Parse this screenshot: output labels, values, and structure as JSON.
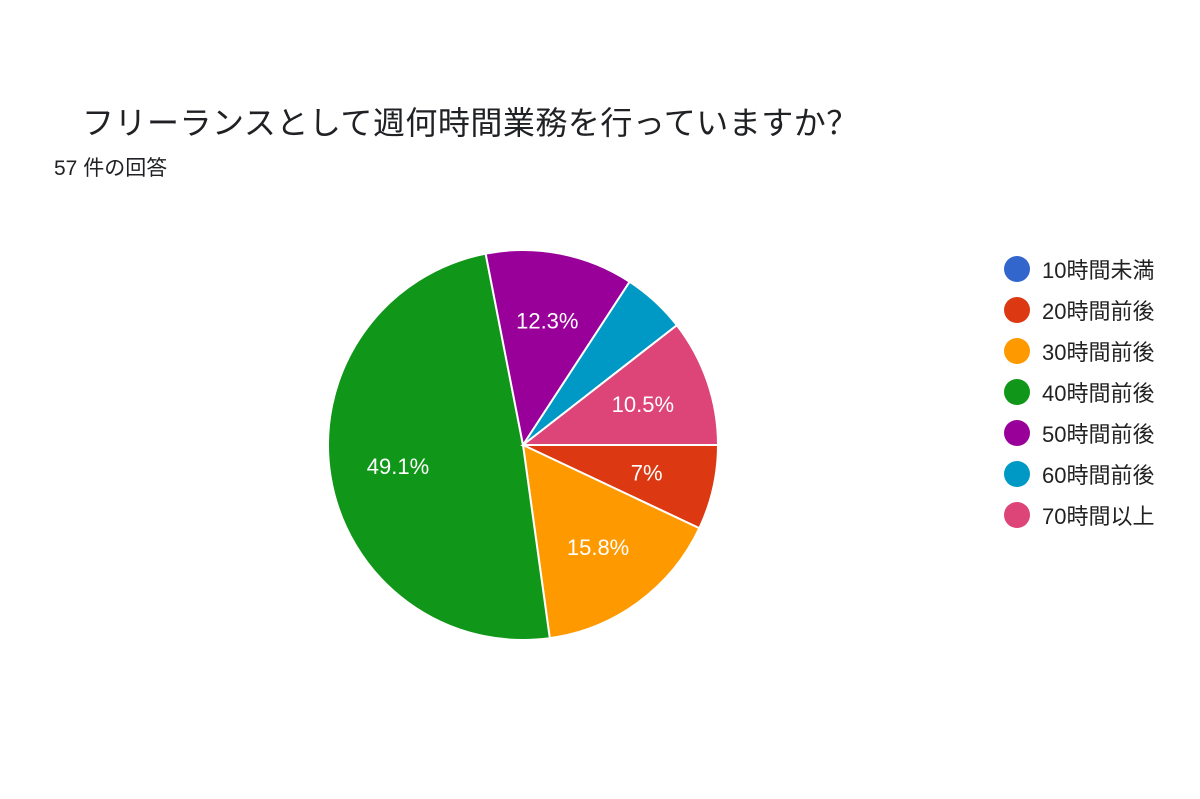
{
  "header": {
    "title": "フリーランスとして週何時間業務を行っていますか？",
    "subtitle": "57 件の回答"
  },
  "chart_data": {
    "type": "pie",
    "total_responses": 57,
    "legend_position": "right",
    "slices": [
      {
        "label": "10時間未満",
        "value": 0,
        "percent_label": "",
        "color": "#3366cc"
      },
      {
        "label": "20時間前後",
        "value": 4,
        "percent_label": "7%",
        "color": "#dc3912"
      },
      {
        "label": "30時間前後",
        "value": 9,
        "percent_label": "15.8%",
        "color": "#ff9900"
      },
      {
        "label": "40時間前後",
        "value": 28,
        "percent_label": "49.1%",
        "color": "#109618"
      },
      {
        "label": "50時間前後",
        "value": 7,
        "percent_label": "12.3%",
        "color": "#990099"
      },
      {
        "label": "60時間前後",
        "value": 3,
        "percent_label": "",
        "color": "#0099c6"
      },
      {
        "label": "70時間以上",
        "value": 6,
        "percent_label": "10.5%",
        "color": "#dd4477"
      }
    ]
  }
}
